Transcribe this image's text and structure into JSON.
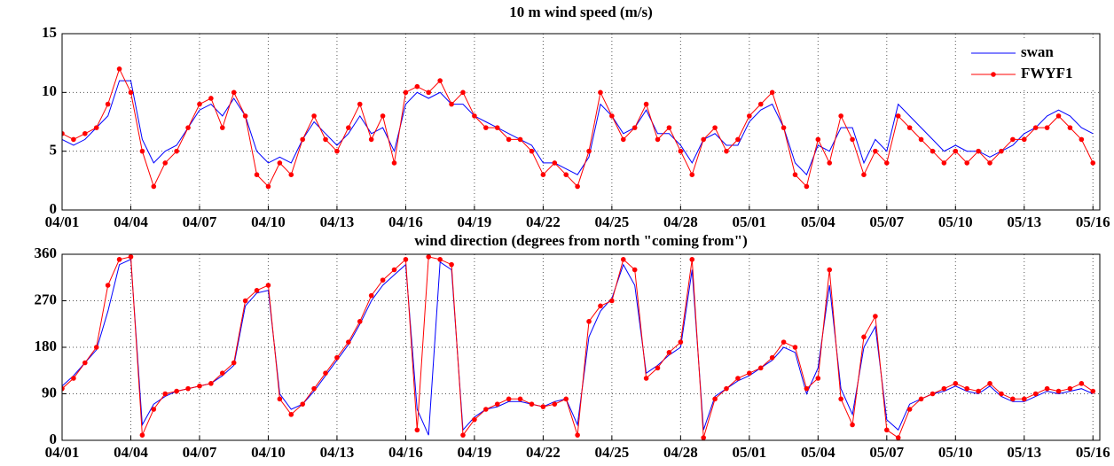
{
  "chart_data": [
    {
      "type": "line",
      "title": "10 m wind speed (m/s)",
      "x": [
        0,
        0.5,
        1,
        1.5,
        2,
        2.5,
        3,
        3.5,
        4,
        4.5,
        5,
        5.5,
        6,
        6.5,
        7,
        7.5,
        8,
        8.5,
        9,
        9.5,
        10,
        10.5,
        11,
        11.5,
        12,
        12.5,
        13,
        13.5,
        14,
        14.5,
        15,
        15.5,
        16,
        16.5,
        17,
        17.5,
        18,
        18.5,
        19,
        19.5,
        20,
        20.5,
        21,
        21.5,
        22,
        22.5,
        23,
        23.5,
        24,
        24.5,
        25,
        25.5,
        26,
        26.5,
        27,
        27.5,
        28,
        28.5,
        29,
        29.5,
        30,
        30.5,
        31,
        31.5,
        32,
        32.5,
        33,
        33.5,
        34,
        34.5,
        35,
        35.5,
        36,
        36.5,
        37,
        37.5,
        38,
        38.5,
        39,
        39.5,
        40,
        40.5,
        41,
        41.5,
        42,
        42.5,
        43,
        43.5,
        44,
        44.5,
        45
      ],
      "series": [
        {
          "name": "swan",
          "color": "#0000ff",
          "marker": false,
          "values": [
            6,
            5.5,
            6,
            7,
            8,
            11,
            11,
            6,
            4,
            5,
            5.5,
            7,
            8.5,
            9,
            8,
            9.5,
            8,
            5,
            4,
            4.5,
            4,
            6,
            7.5,
            6.5,
            5.5,
            6.5,
            8,
            6.5,
            7,
            5,
            9,
            10,
            9.5,
            10,
            9,
            9,
            8,
            7.5,
            7,
            6.5,
            6,
            5.5,
            4,
            4,
            3.5,
            3,
            4.5,
            9,
            8,
            6.5,
            7,
            8.5,
            6.5,
            6.5,
            5.5,
            4,
            6,
            6.5,
            5.5,
            5.5,
            7.5,
            8.5,
            9,
            7,
            4,
            3,
            5.5,
            5,
            7,
            7,
            4,
            6,
            5,
            9,
            8,
            7,
            6,
            5,
            5.5,
            5,
            5,
            4.5,
            5,
            5.5,
            6.5,
            7,
            8,
            8.5,
            8,
            7,
            6.5
          ]
        },
        {
          "name": "FWYF1",
          "color": "#ff0000",
          "marker": true,
          "values": [
            6.5,
            6,
            6.5,
            7,
            9,
            12,
            10,
            5,
            2,
            4,
            5,
            7,
            9,
            9.5,
            7,
            10,
            8,
            3,
            2,
            4,
            3,
            6,
            8,
            6,
            5,
            7,
            9,
            6,
            8,
            4,
            10,
            10.5,
            10,
            11,
            9,
            10,
            8,
            7,
            7,
            6,
            6,
            5,
            3,
            4,
            3,
            2,
            5,
            10,
            8,
            6,
            7,
            9,
            6,
            7,
            5,
            3,
            6,
            7,
            5,
            6,
            8,
            9,
            10,
            7,
            3,
            2,
            6,
            4,
            8,
            6,
            3,
            5,
            4,
            8,
            7,
            6,
            5,
            4,
            5,
            4,
            5,
            4,
            5,
            6,
            6,
            7,
            7,
            8,
            7,
            6,
            4
          ]
        }
      ],
      "xlim": [
        0,
        45.3
      ],
      "ylim": [
        0,
        15
      ],
      "yticks": [
        0,
        5,
        10,
        15
      ],
      "xticks": [
        {
          "value": 0,
          "label": "04/01"
        },
        {
          "value": 3,
          "label": "04/04"
        },
        {
          "value": 6,
          "label": "04/07"
        },
        {
          "value": 9,
          "label": "04/10"
        },
        {
          "value": 12,
          "label": "04/13"
        },
        {
          "value": 15,
          "label": "04/16"
        },
        {
          "value": 18,
          "label": "04/19"
        },
        {
          "value": 21,
          "label": "04/22"
        },
        {
          "value": 24,
          "label": "04/25"
        },
        {
          "value": 27,
          "label": "04/28"
        },
        {
          "value": 30,
          "label": "05/01"
        },
        {
          "value": 33,
          "label": "05/04"
        },
        {
          "value": 36,
          "label": "05/07"
        },
        {
          "value": 39,
          "label": "05/10"
        },
        {
          "value": 42,
          "label": "05/13"
        },
        {
          "value": 45,
          "label": "05/16"
        }
      ],
      "grid": true,
      "legend": "upper right"
    },
    {
      "type": "line",
      "title": "wind direction (degrees from north \"coming from\")",
      "x": [
        0,
        0.5,
        1,
        1.5,
        2,
        2.5,
        3,
        3.5,
        4,
        4.5,
        5,
        5.5,
        6,
        6.5,
        7,
        7.5,
        8,
        8.5,
        9,
        9.5,
        10,
        10.5,
        11,
        11.5,
        12,
        12.5,
        13,
        13.5,
        14,
        14.5,
        15,
        15.5,
        16,
        16.5,
        17,
        17.5,
        18,
        18.5,
        19,
        19.5,
        20,
        20.5,
        21,
        21.5,
        22,
        22.5,
        23,
        23.5,
        24,
        24.5,
        25,
        25.5,
        26,
        26.5,
        27,
        27.5,
        28,
        28.5,
        29,
        29.5,
        30,
        30.5,
        31,
        31.5,
        32,
        32.5,
        33,
        33.5,
        34,
        34.5,
        35,
        35.5,
        36,
        36.5,
        37,
        37.5,
        38,
        38.5,
        39,
        39.5,
        40,
        40.5,
        41,
        41.5,
        42,
        42.5,
        43,
        43.5,
        44,
        44.5,
        45
      ],
      "series": [
        {
          "name": "swan",
          "color": "#0000ff",
          "marker": false,
          "values": [
            105,
            125,
            150,
            175,
            250,
            340,
            350,
            30,
            70,
            85,
            95,
            100,
            105,
            110,
            125,
            145,
            260,
            285,
            290,
            90,
            60,
            70,
            95,
            125,
            155,
            185,
            225,
            270,
            300,
            320,
            340,
            60,
            10,
            345,
            330,
            20,
            45,
            60,
            65,
            75,
            75,
            70,
            65,
            75,
            80,
            30,
            200,
            250,
            275,
            340,
            300,
            130,
            145,
            165,
            180,
            330,
            20,
            85,
            100,
            115,
            125,
            140,
            155,
            180,
            170,
            90,
            140,
            300,
            100,
            50,
            180,
            220,
            40,
            20,
            70,
            80,
            90,
            95,
            105,
            95,
            90,
            105,
            85,
            75,
            75,
            85,
            95,
            90,
            95,
            100,
            90
          ]
        },
        {
          "name": "FWYF1",
          "color": "#ff0000",
          "marker": true,
          "values": [
            100,
            120,
            150,
            180,
            300,
            350,
            355,
            10,
            60,
            90,
            95,
            100,
            105,
            110,
            130,
            150,
            270,
            290,
            300,
            80,
            50,
            70,
            100,
            130,
            160,
            190,
            230,
            280,
            310,
            330,
            350,
            20,
            355,
            350,
            340,
            10,
            40,
            60,
            70,
            80,
            80,
            70,
            65,
            70,
            80,
            10,
            230,
            260,
            270,
            350,
            330,
            120,
            140,
            170,
            190,
            350,
            5,
            80,
            100,
            120,
            130,
            140,
            160,
            190,
            180,
            100,
            120,
            330,
            80,
            30,
            200,
            240,
            20,
            5,
            60,
            80,
            90,
            100,
            110,
            100,
            95,
            110,
            90,
            80,
            80,
            90,
            100,
            95,
            100,
            110,
            95
          ]
        }
      ],
      "xlim": [
        0,
        45.3
      ],
      "ylim": [
        0,
        360
      ],
      "yticks": [
        0,
        90,
        180,
        270,
        360
      ],
      "xticks": [
        {
          "value": 0,
          "label": "04/01"
        },
        {
          "value": 3,
          "label": "04/04"
        },
        {
          "value": 6,
          "label": "04/07"
        },
        {
          "value": 9,
          "label": "04/10"
        },
        {
          "value": 12,
          "label": "04/13"
        },
        {
          "value": 15,
          "label": "04/16"
        },
        {
          "value": 18,
          "label": "04/19"
        },
        {
          "value": 21,
          "label": "04/22"
        },
        {
          "value": 24,
          "label": "04/25"
        },
        {
          "value": 27,
          "label": "04/28"
        },
        {
          "value": 30,
          "label": "05/01"
        },
        {
          "value": 33,
          "label": "05/04"
        },
        {
          "value": 36,
          "label": "05/07"
        },
        {
          "value": 39,
          "label": "05/10"
        },
        {
          "value": 42,
          "label": "05/13"
        },
        {
          "value": 45,
          "label": "05/16"
        }
      ],
      "grid": true
    }
  ]
}
